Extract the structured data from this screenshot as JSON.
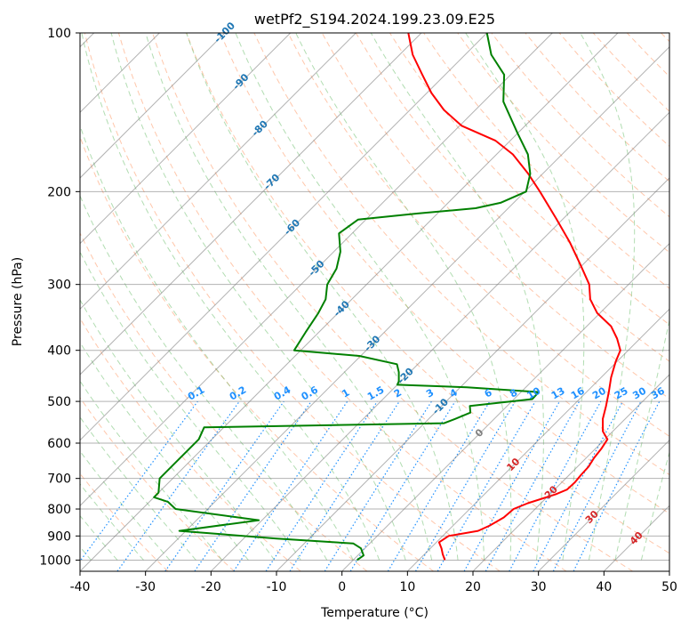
{
  "chart_data": {
    "type": "line",
    "diagram": "skew-T log-P",
    "title": "wetPf2_S194.2024.199.23.09.E25",
    "xlabel": "Temperature (°C)",
    "ylabel": "Pressure (hPa)",
    "xlim": [
      -40,
      50
    ],
    "ylim": [
      1050,
      100
    ],
    "yscale": "log",
    "x_ticks": [
      "-40",
      "-30",
      "-20",
      "-10",
      "0",
      "10",
      "20",
      "30",
      "40",
      "50"
    ],
    "y_ticks": [
      "100",
      "200",
      "300",
      "400",
      "500",
      "600",
      "700",
      "800",
      "900",
      "1000"
    ],
    "grid": true,
    "colors": {
      "temperature": "#ff0000",
      "dewpoint": "#008000",
      "isotherm": "#7f7f7f",
      "dry_adiabat": "#ff9966",
      "moist_adiabat": "#66bb66",
      "mixing_ratio": "#1e90ff",
      "isotherm_label_cold": "#1f77b4",
      "isotherm_label_warm": "#d62728",
      "zero_label": "#7f7f7f"
    },
    "series": [
      {
        "role": "temperature",
        "points": [
          [
            14.0,
            1000
          ],
          [
            12.8,
            975
          ],
          [
            11.7,
            950
          ],
          [
            10.4,
            925
          ],
          [
            10.9,
            900
          ],
          [
            14.6,
            880
          ],
          [
            15.6,
            860
          ],
          [
            16.5,
            830
          ],
          [
            16.7,
            800
          ],
          [
            18.0,
            780
          ],
          [
            20.9,
            750
          ],
          [
            21.9,
            735
          ],
          [
            22.0,
            712
          ],
          [
            21.8,
            690
          ],
          [
            21.7,
            665
          ],
          [
            21.2,
            640
          ],
          [
            20.9,
            615
          ],
          [
            20.4,
            590
          ],
          [
            18.5,
            570
          ],
          [
            16.6,
            540
          ],
          [
            15.1,
            510
          ],
          [
            13.4,
            480
          ],
          [
            11.5,
            450
          ],
          [
            9.8,
            420
          ],
          [
            8.8,
            400
          ],
          [
            6.5,
            380
          ],
          [
            3.7,
            360
          ],
          [
            -0.4,
            340
          ],
          [
            -3.6,
            320
          ],
          [
            -6.0,
            300
          ],
          [
            -10.4,
            275
          ],
          [
            -15.3,
            250
          ],
          [
            -21.1,
            225
          ],
          [
            -27.7,
            200
          ],
          [
            -32.2,
            185
          ],
          [
            -37.5,
            170
          ],
          [
            -42.3,
            160
          ],
          [
            -49.7,
            150
          ],
          [
            -54.8,
            140
          ],
          [
            -59.3,
            130
          ],
          [
            -63.5,
            120
          ],
          [
            -68.0,
            110
          ],
          [
            -72.0,
            100
          ]
        ]
      },
      {
        "role": "dewpoint",
        "points": [
          [
            0.6,
            1000
          ],
          [
            0.9,
            980
          ],
          [
            -0.6,
            950
          ],
          [
            -2.5,
            930
          ],
          [
            -15.0,
            910
          ],
          [
            -31.0,
            880
          ],
          [
            -20.5,
            840
          ],
          [
            -34.9,
            800
          ],
          [
            -37.2,
            775
          ],
          [
            -40.0,
            760
          ],
          [
            -40.0,
            745
          ],
          [
            -42.0,
            700
          ],
          [
            -42.0,
            650
          ],
          [
            -42.0,
            590
          ],
          [
            -43.0,
            560
          ],
          [
            -7.0,
            550
          ],
          [
            -6.0,
            540
          ],
          [
            -4.6,
            525
          ],
          [
            -5.7,
            510
          ],
          [
            2.8,
            495
          ],
          [
            2.7,
            480
          ],
          [
            -9.0,
            470
          ],
          [
            -20.0,
            465
          ],
          [
            -20.3,
            458
          ],
          [
            -21.7,
            440
          ],
          [
            -23.2,
            425
          ],
          [
            -30.2,
            410
          ],
          [
            -41.0,
            400
          ],
          [
            -42.0,
            370
          ],
          [
            -43.0,
            340
          ],
          [
            -44.0,
            320
          ],
          [
            -46.0,
            300
          ],
          [
            -47.0,
            280
          ],
          [
            -49.0,
            260
          ],
          [
            -52.0,
            240
          ],
          [
            -51.2,
            226
          ],
          [
            -43.0,
            220
          ],
          [
            -35.0,
            215
          ],
          [
            -32.0,
            210
          ],
          [
            -29.8,
            200
          ],
          [
            -31.9,
            185
          ],
          [
            -35.2,
            170
          ],
          [
            -40.0,
            155
          ],
          [
            -47.0,
            135
          ],
          [
            -51.0,
            120
          ],
          [
            -56.0,
            110
          ],
          [
            -60.0,
            100
          ]
        ]
      }
    ],
    "isotherm_labels": [
      "-100",
      "-90",
      "-80",
      "-70",
      "-60",
      "-50",
      "-40",
      "-30",
      "-20",
      "-10",
      "0",
      "10",
      "20",
      "30",
      "40"
    ],
    "mixing_ratio_labels": [
      "0.1",
      "0.2",
      "0.4",
      "0.6",
      "1",
      "1.5",
      "2",
      "3",
      "4",
      "6",
      "8",
      "10",
      "13",
      "16",
      "20",
      "25",
      "30",
      "36"
    ]
  }
}
